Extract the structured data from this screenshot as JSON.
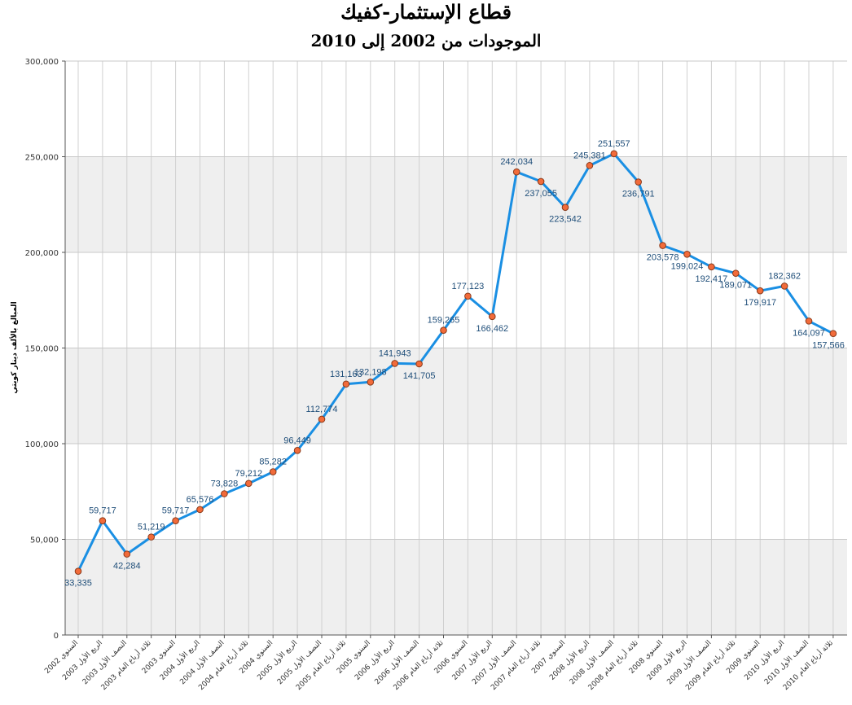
{
  "title": "قطاع الإستثمار-كفيك",
  "subtitle": "الموجودات من 2002 إلى 2010",
  "colors": {
    "line": "#1a8fe3",
    "marker_fill": "#f26b3a",
    "marker_stroke": "#8a3a1a",
    "band": "#efefef",
    "grid": "#d0d0d0"
  },
  "chart_data": {
    "type": "line",
    "ylabel": "المبالغ بالألف دينار كويتي",
    "ylim": [
      0,
      300000
    ],
    "yticks": [
      "0",
      "50,000",
      "100,000",
      "150,000",
      "200,000",
      "250,000",
      "300,000"
    ],
    "ytick_values": [
      0,
      50000,
      100000,
      150000,
      200000,
      250000,
      300000
    ],
    "grid": true,
    "categories": [
      "السنوي 2002",
      "الربع الأول 2003",
      "النصف الأول 2003",
      "ثلاثة أرباع العام 2003",
      "السنوي 2003",
      "الربع الأول 2004",
      "النصف الأول 2004",
      "ثلاثة أرباع العام 2004",
      "السنوي 2004",
      "الربع الأول 2005",
      "النصف الأول 2005",
      "ثلاثة أرباع العام 2005",
      "السنوي 2005",
      "الربع الأول 2006",
      "النصف الأول 2006",
      "ثلاثة أرباع العام 2006",
      "السنوي 2006",
      "الربع الأول 2007",
      "النصف الأول 2007",
      "ثلاثة أرباع العام 2007",
      "السنوي 2007",
      "الربع الأول 2008",
      "النصف الأول 2008",
      "ثلاثة أرباع العام 2008",
      "السنوي 2008",
      "الربع الأول 2009",
      "النصف الأول 2009",
      "ثلاثة أرباع العام 2009",
      "السنوي 2009",
      "الربع الأول 2010",
      "النصف الأول 2010",
      "ثلاثة أرباع العام 2010"
    ],
    "series": [
      {
        "values": [
          33335,
          59717,
          42284,
          51219,
          59717,
          65576,
          73828,
          79212,
          85282,
          96449,
          112774,
          131163,
          132198,
          141943,
          141705,
          159265,
          177123,
          166462,
          242034,
          237055,
          223542,
          245381,
          251557,
          236791,
          203578,
          199024,
          192417,
          189071,
          179917,
          182362,
          164097,
          157566
        ],
        "labels": [
          "33,335",
          "59,717",
          "42,284",
          "51,219",
          "59,717",
          "65,576",
          "73,828",
          "79,212",
          "85,282",
          "96,449",
          "112,774",
          "131,163",
          "132,198",
          "141,943",
          "141,705",
          "159,265",
          "177,123",
          "166,462",
          "242,034",
          "237,055",
          "223,542",
          "245,381",
          "251,557",
          "236,791",
          "203,578",
          "199,024",
          "192,417",
          "189,071",
          "179,917",
          "182,362",
          "164,097",
          "157,566"
        ]
      }
    ]
  }
}
